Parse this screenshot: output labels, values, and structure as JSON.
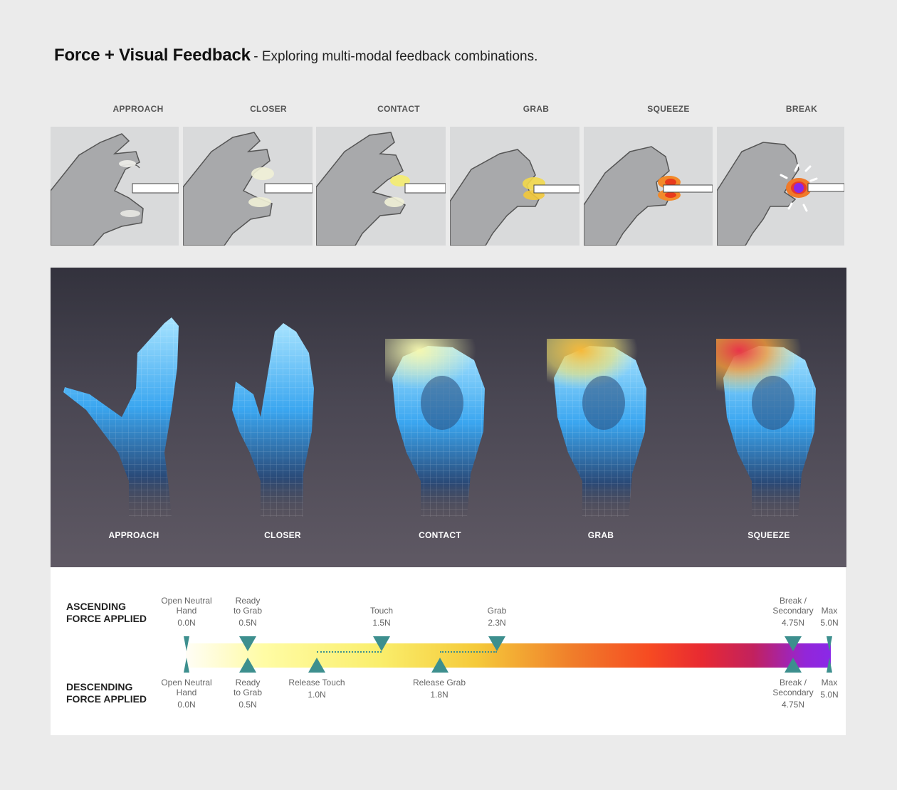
{
  "header": {
    "title": "Force + Visual Feedback",
    "subtitle": "- Exploring multi-modal feedback combinations."
  },
  "top_stages": [
    "APPROACH",
    "CLOSER",
    "CONTACT",
    "GRAB",
    "SQUEEZE",
    "BREAK"
  ],
  "render_stages": [
    "APPROACH",
    "CLOSER",
    "CONTACT",
    "GRAB",
    "SQUEEZE"
  ],
  "timeline": {
    "ascending_title": "ASCENDING\nFORCE APPLIED",
    "descending_title": "DESCENDING\nFORCE APPLIED",
    "ascending": [
      {
        "label": "Open Neutral\nHand",
        "value": "0.0N"
      },
      {
        "label": "Ready\nto Grab",
        "value": "0.5N"
      },
      {
        "label": "Touch",
        "value": "1.5N"
      },
      {
        "label": "Grab",
        "value": "2.3N"
      },
      {
        "label": "Break /\nSecondary",
        "value": "4.75N"
      },
      {
        "label": "Max",
        "value": "5.0N"
      }
    ],
    "descending": [
      {
        "label": "Open Neutral\nHand",
        "value": "0.0N"
      },
      {
        "label": "Ready\nto Grab",
        "value": "0.5N"
      },
      {
        "label": "Release Touch",
        "value": "1.0N"
      },
      {
        "label": "Release Grab",
        "value": "1.8N"
      },
      {
        "label": "Break /\nSecondary",
        "value": "4.75N"
      },
      {
        "label": "Max",
        "value": "5.0N"
      }
    ]
  },
  "colors": {
    "marker": "#3d8f8e",
    "background": "#ebebeb",
    "dark_band_top": "#33323d",
    "dark_band_bottom": "#5f5964"
  }
}
